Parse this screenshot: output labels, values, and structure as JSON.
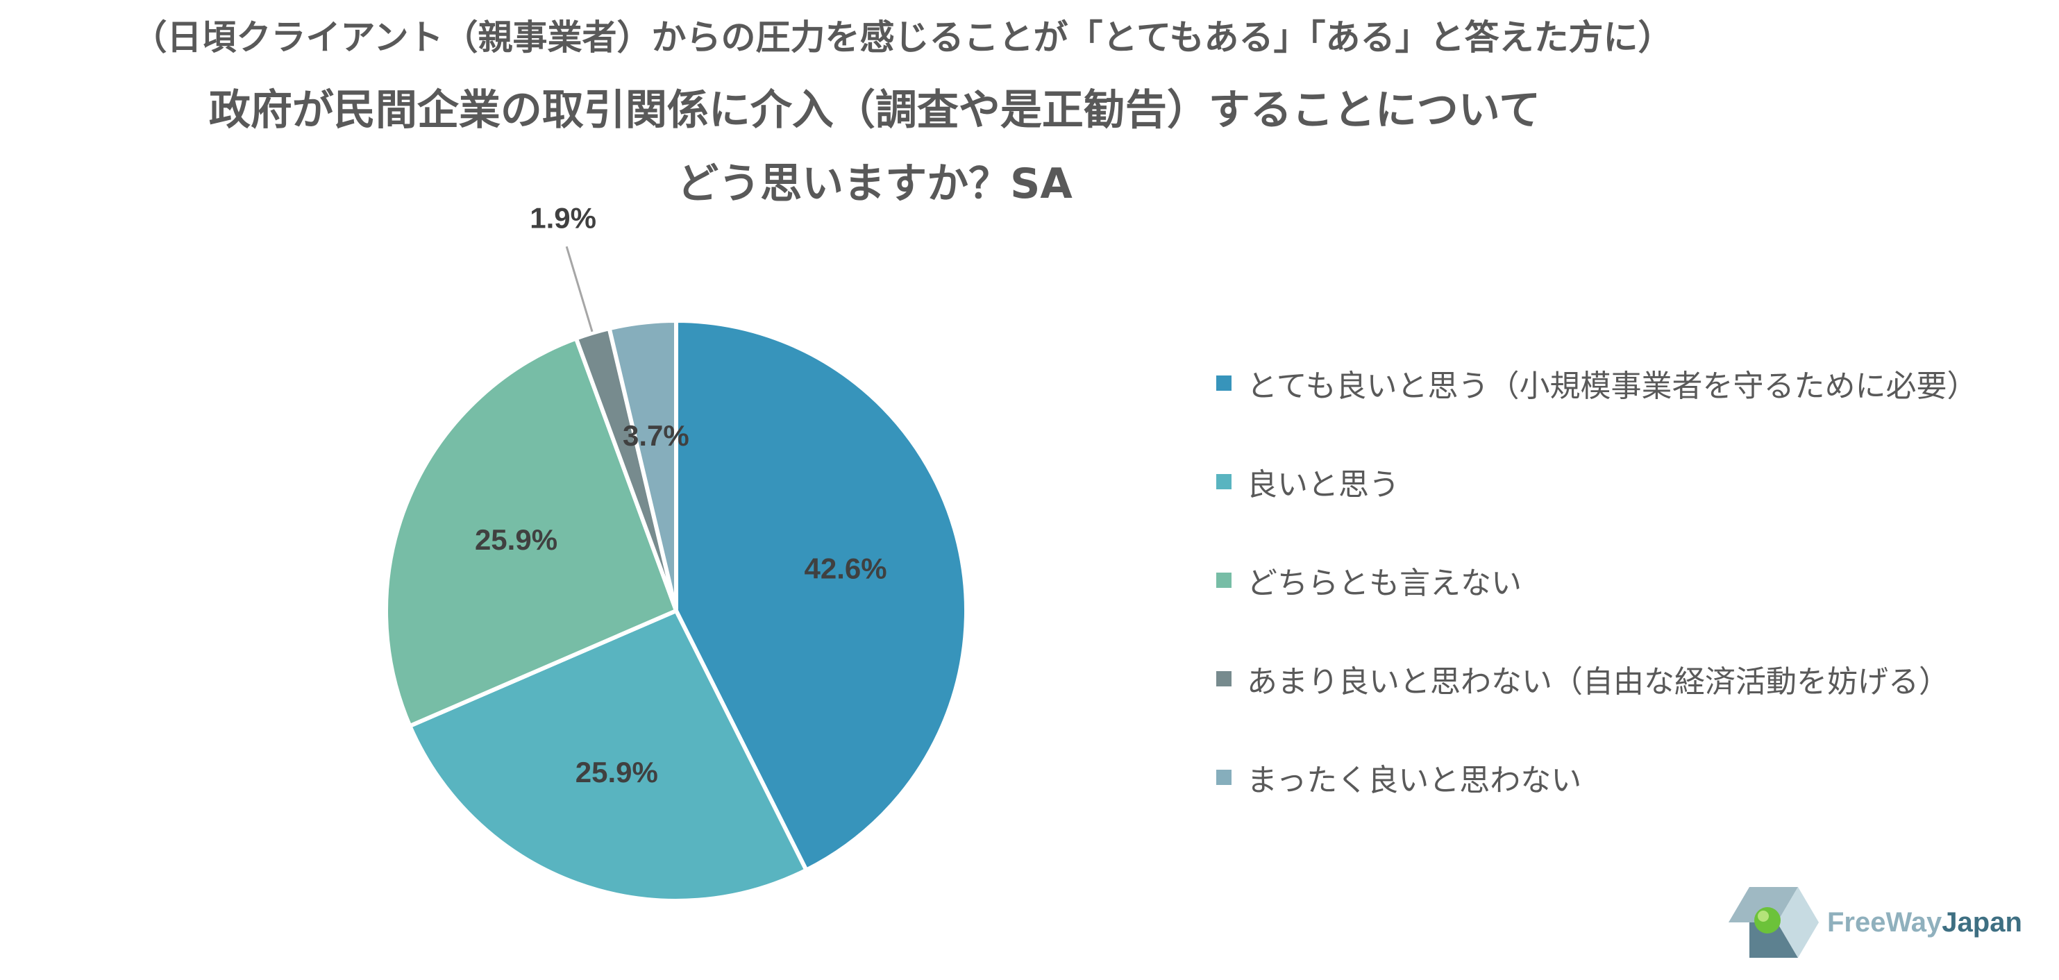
{
  "header": {
    "subtitle": "（日頃クライアント（親事業者）からの圧力を感じることが「とてもある」「ある」と答えた方に）",
    "title_line1": "政府が民間企業の取引関係に介入（調査や是正勧告）することについて",
    "title_line2": "どう思いますか？SA"
  },
  "chart_data": {
    "type": "pie",
    "title": "政府が民間企業の取引関係に介入（調査や是正勧告）することについて どう思いますか？SA",
    "subtitle": "（日頃クライアント（親事業者）からの圧力を感じることが「とてもある」「ある」と答えた方に）",
    "start_angle_deg": 0,
    "direction": "clockwise",
    "legend_position": "right",
    "slices": [
      {
        "label": "とても良いと思う（小規模事業者を守るために必要）",
        "value": 42.6,
        "display": "42.6%",
        "color": "#3794bb"
      },
      {
        "label": "良いと思う",
        "value": 25.9,
        "display": "25.9%",
        "color": "#59b4c0"
      },
      {
        "label": "どちらとも言えない",
        "value": 25.9,
        "display": "25.9%",
        "color": "#77bda6"
      },
      {
        "label": "あまり良いと思わない（自由な経済活動を妨げる）",
        "value": 1.9,
        "display": "1.9%",
        "color": "#778b8e"
      },
      {
        "label": "まったく良いと思わない",
        "value": 3.7,
        "display": "3.7%",
        "color": "#86aebc"
      }
    ]
  },
  "logo": {
    "text_light": "FreeWay",
    "text_strong": "Japan"
  }
}
